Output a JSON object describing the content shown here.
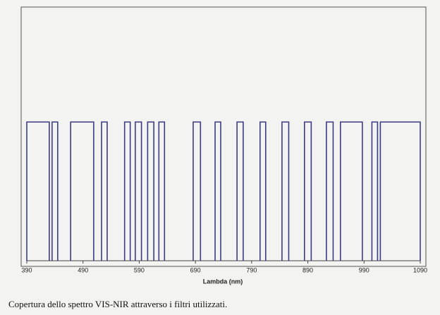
{
  "chart_data": {
    "type": "bands",
    "x_label": "Lambda (nm)",
    "xlim": [
      390,
      1090
    ],
    "xticks": [
      390,
      490,
      590,
      690,
      790,
      890,
      990,
      1090
    ],
    "ylim": [
      0,
      80
    ],
    "level": 70,
    "color": "#3b3b86",
    "bands": [
      [
        390,
        430
      ],
      [
        435,
        445
      ],
      [
        468,
        509
      ],
      [
        523,
        533
      ],
      [
        564,
        574
      ],
      [
        583,
        594
      ],
      [
        605,
        616
      ],
      [
        625,
        635
      ],
      [
        686,
        699
      ],
      [
        725,
        735
      ],
      [
        764,
        775
      ],
      [
        805,
        815
      ],
      [
        844,
        856
      ],
      [
        884,
        896
      ],
      [
        923,
        935
      ],
      [
        948,
        987
      ],
      [
        1004,
        1014
      ],
      [
        1019,
        1090
      ]
    ]
  },
  "caption": "Copertura dello spettro VIS-NIR attraverso i filtri utilizzati."
}
